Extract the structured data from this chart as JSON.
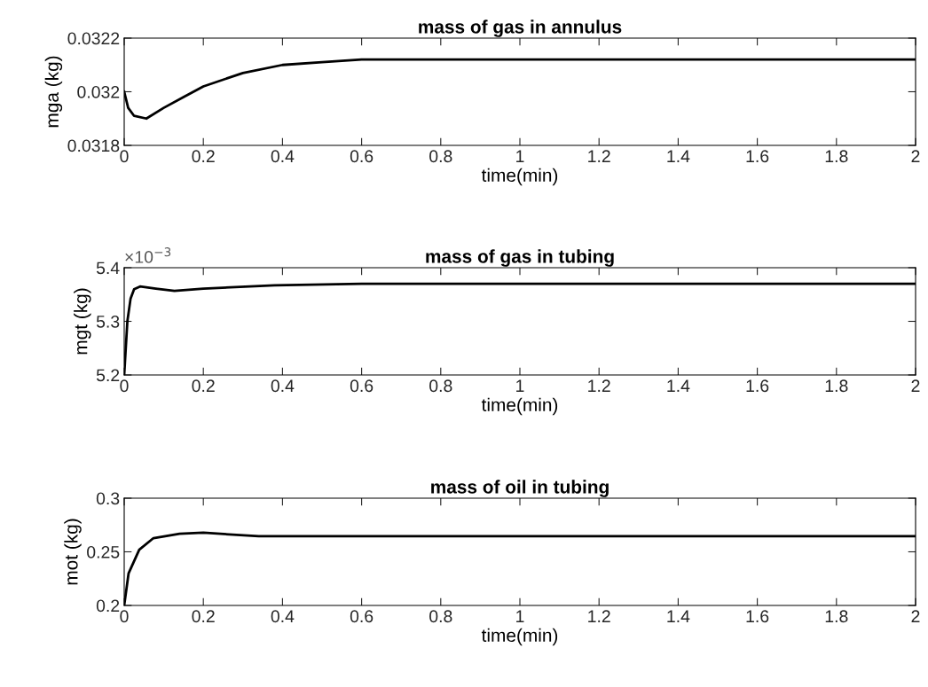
{
  "chart_data": [
    {
      "type": "line",
      "title": "mass of gas in annulus",
      "xlabel": "time(min)",
      "ylabel": "mga (kg)",
      "x": [
        0,
        0.01,
        0.025,
        0.056,
        0.1,
        0.15,
        0.2,
        0.3,
        0.4,
        0.5,
        0.6,
        1.0,
        2.0
      ],
      "series": [
        {
          "color": "#000000",
          "values": [
            0.032,
            0.03194,
            0.03191,
            0.0319,
            0.03194,
            0.03198,
            0.03202,
            0.03207,
            0.0321,
            0.03211,
            0.03212,
            0.03212,
            0.03212
          ]
        }
      ],
      "xlim": [
        0,
        2
      ],
      "xticks": [
        0,
        0.2,
        0.4,
        0.6,
        0.8,
        1,
        1.2,
        1.4,
        1.6,
        1.8,
        2
      ],
      "ylim": [
        0.0318,
        0.0322
      ],
      "yticks": [
        0.0318,
        0.032,
        0.0322
      ],
      "grid": false,
      "legend": false
    },
    {
      "type": "line",
      "title": "mass of gas in tubing",
      "xlabel": "time(min)",
      "ylabel": "mgt (kg)",
      "annotations": [
        "×10$^{−3}$"
      ],
      "x": [
        0,
        0.008,
        0.016,
        0.025,
        0.04,
        0.08,
        0.127,
        0.2,
        0.38,
        0.6,
        1.0,
        2.0
      ],
      "series": [
        {
          "color": "#000000",
          "values": [
            5.2,
            5.3,
            5.342,
            5.36,
            5.365,
            5.361,
            5.357,
            5.361,
            5.367,
            5.37,
            5.37,
            5.37
          ]
        }
      ],
      "xlim": [
        0,
        2
      ],
      "xticks": [
        0,
        0.2,
        0.4,
        0.6,
        0.8,
        1,
        1.2,
        1.4,
        1.6,
        1.8,
        2
      ],
      "ylim": [
        5.2,
        5.4
      ],
      "yticks": [
        5.2,
        5.3,
        5.4
      ],
      "grid": false,
      "legend": false
    },
    {
      "type": "line",
      "title": "mass of oil in tubing",
      "xlabel": "time(min)",
      "ylabel": "mot (kg)",
      "x": [
        0,
        0.011,
        0.038,
        0.074,
        0.14,
        0.2,
        0.34,
        0.6,
        1.0,
        2.0
      ],
      "series": [
        {
          "color": "#000000",
          "values": [
            0.2,
            0.2298,
            0.252,
            0.2628,
            0.2669,
            0.2678,
            0.2645,
            0.2645,
            0.2645,
            0.2645
          ]
        }
      ],
      "xlim": [
        0,
        2
      ],
      "xticks": [
        0,
        0.2,
        0.4,
        0.6,
        0.8,
        1,
        1.2,
        1.4,
        1.6,
        1.8,
        2
      ],
      "ylim": [
        0.2,
        0.3
      ],
      "yticks": [
        0.2,
        0.25,
        0.3
      ],
      "grid": false,
      "legend": false
    }
  ]
}
